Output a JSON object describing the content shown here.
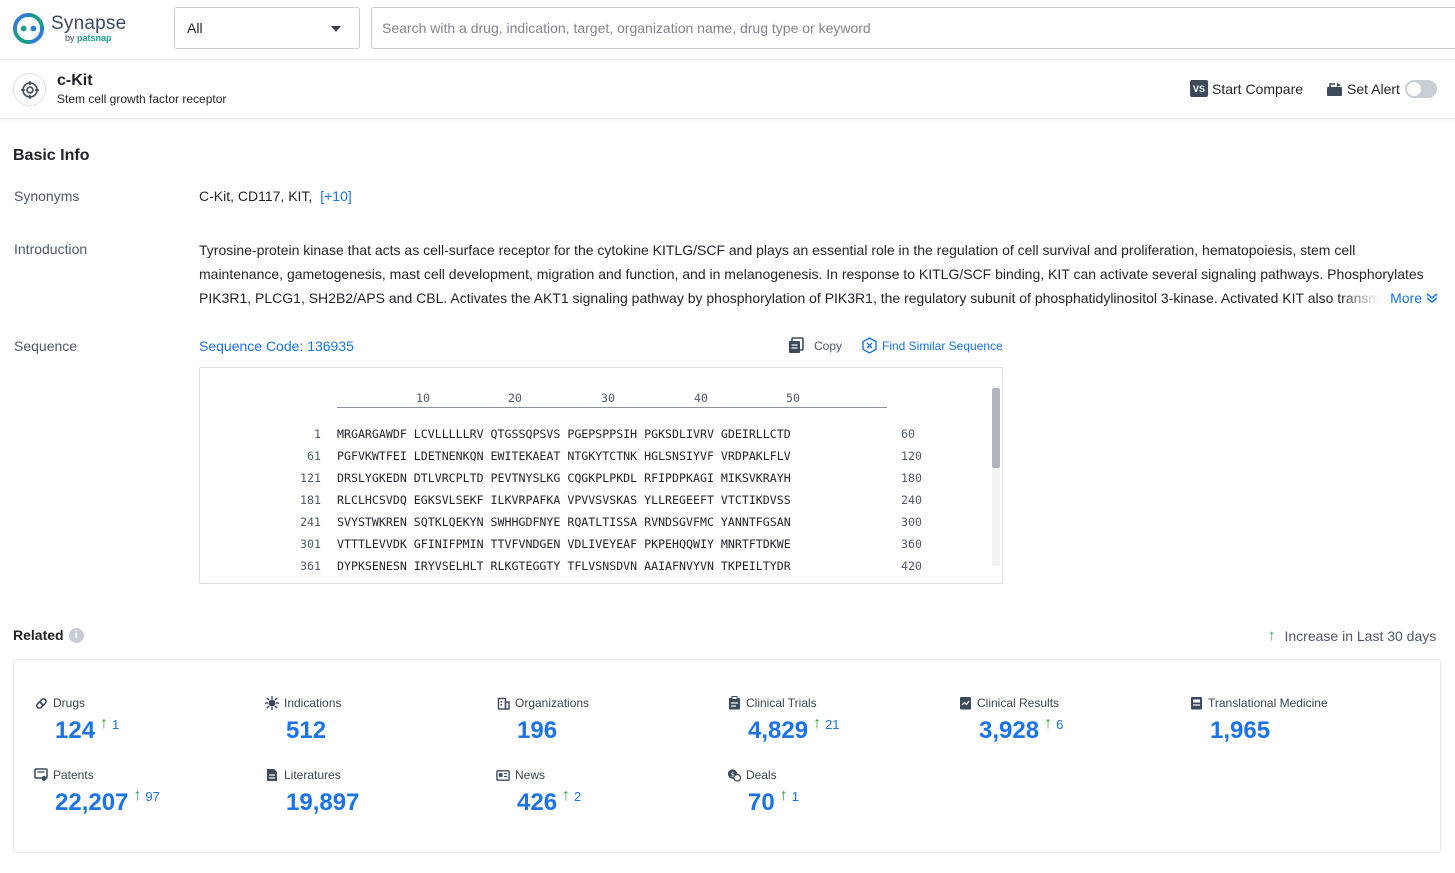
{
  "header": {
    "logo_name": "Synapse",
    "logo_by": "by",
    "logo_brand": "patsnap",
    "scope_value": "All",
    "search_placeholder": "Search with a drug, indication, target, organization name, drug type or keyword"
  },
  "entity": {
    "title": "c-Kit",
    "subtitle": "Stem cell growth factor receptor",
    "compare_badge": "VS",
    "compare_label": "Start Compare",
    "alert_label": "Set Alert",
    "alert_enabled": false
  },
  "basic_info": {
    "title": "Basic Info",
    "synonyms_label": "Synonyms",
    "synonyms": "C-Kit,  CD117,  KIT,",
    "synonyms_more": "[+10]",
    "intro_label": "Introduction",
    "intro_text": "Tyrosine-protein kinase that acts as cell-surface receptor for the cytokine KITLG/SCF and plays an essential role in the regulation of cell survival and proliferation, hematopoiesis, stem cell maintenance, gametogenesis, mast cell development, migration and function, and in melanogenesis. In response to KITLG/SCF binding, KIT can activate several signaling pathways. Phosphorylates PIK3R1, PLCG1, SH2B2/APS and CBL. Activates the AKT1 signaling pathway by phosphorylation of PIK3R1, the regulatory subunit of phosphatidylinositol 3-kinase. Activated KIT also transmits",
    "intro_more": "More",
    "sequence_label": "Sequence",
    "sequence_code": "Sequence Code: 136935",
    "copy_label": "Copy",
    "find_similar_label": "Find Similar Sequence",
    "ruler": [
      "10",
      "20",
      "30",
      "40",
      "50"
    ],
    "sequence_rows": [
      {
        "start": "1",
        "seq": "MRGARGAWDF LCVLLLLLRV QTGSSQPSVS PGEPSPPSIH PGKSDLIVRV GDEIRLLCTD",
        "end": "60"
      },
      {
        "start": "61",
        "seq": "PGFVKWTFEI LDETNENKQN EWITEKAEAT NTGKYTCTNK HGLSNSIYVF VRDPAKLFLV",
        "end": "120"
      },
      {
        "start": "121",
        "seq": "DRSLYGKEDN DTLVRCPLTD PEVTNYSLKG CQGKPLPKDL RFIPDPKAGI MIKSVKRAYH",
        "end": "180"
      },
      {
        "start": "181",
        "seq": "RLCLHCSVDQ EGKSVLSEKF ILKVRPAFKA VPVVSVSKAS YLLREGEEFT VTCTIKDVSS",
        "end": "240"
      },
      {
        "start": "241",
        "seq": "SVYSTWKREN SQTKLQEKYN SWHHGDFNYE RQATLTISSA RVNDSGVFMC YANNTFGSAN",
        "end": "300"
      },
      {
        "start": "301",
        "seq": "VTTTLEVVDK GFINIFPMIN TTVFVNDGEN VDLIVEYEAF PKPEHQQWIY MNRTFTDKWE",
        "end": "360"
      },
      {
        "start": "361",
        "seq": "DYPKSENESN IRYVSELHLT RLKGTEGGTY TFLVSNSDVN AAIAFNVYVN TKPEILTYDR",
        "end": "420"
      }
    ]
  },
  "related": {
    "title": "Related",
    "info_glyph": "i",
    "increase_note": "Increase in Last 30 days",
    "stats": [
      {
        "label": "Drugs",
        "value": "124",
        "increase": "1",
        "icon": "pill-icon"
      },
      {
        "label": "Indications",
        "value": "512",
        "increase": "",
        "icon": "virus-icon"
      },
      {
        "label": "Organizations",
        "value": "196",
        "increase": "",
        "icon": "building-icon"
      },
      {
        "label": "Clinical Trials",
        "value": "4,829",
        "increase": "21",
        "icon": "clipboard-icon"
      },
      {
        "label": "Clinical Results",
        "value": "3,928",
        "increase": "6",
        "icon": "results-icon"
      },
      {
        "label": "Translational Medicine",
        "value": "1,965",
        "increase": "",
        "icon": "translational-icon"
      },
      {
        "label": "Patents",
        "value": "22,207",
        "increase": "97",
        "icon": "patent-icon"
      },
      {
        "label": "Literatures",
        "value": "19,897",
        "increase": "",
        "icon": "document-icon"
      },
      {
        "label": "News",
        "value": "426",
        "increase": "2",
        "icon": "news-icon"
      },
      {
        "label": "Deals",
        "value": "70",
        "increase": "1",
        "icon": "deals-icon"
      }
    ]
  },
  "colors": {
    "accent": "#1a73e8",
    "increase": "#2e9e3e",
    "brand_teal": "#1a9c8c"
  }
}
